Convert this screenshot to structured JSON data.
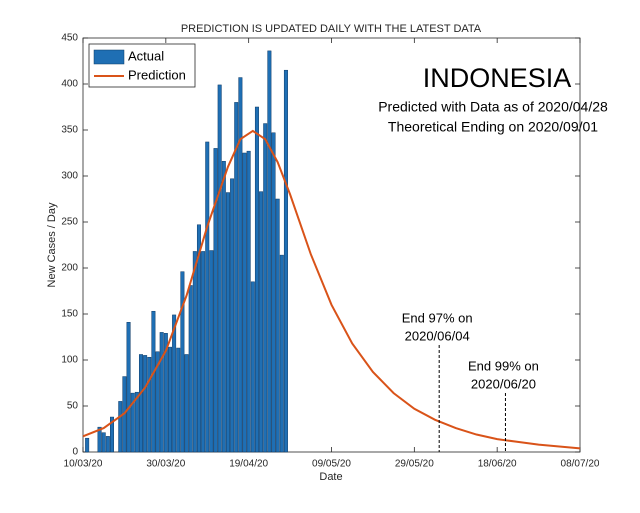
{
  "chart_data": {
    "type": "bar",
    "title": "PREDICTION IS UPDATED DAILY WITH THE LATEST DATA",
    "heading": "INDONESIA",
    "subtitles": [
      "Predicted with Data as of 2020/04/28",
      "Theoretical Ending on 2020/09/01"
    ],
    "x_label": "Date",
    "y_label": "New Cases / Day",
    "xlim": [
      "10/03/20",
      "08/07/20"
    ],
    "xticks": [
      "10/03/20",
      "30/03/20",
      "19/04/20",
      "09/05/20",
      "29/05/20",
      "18/06/20",
      "08/07/20"
    ],
    "ylim": [
      0,
      450
    ],
    "yticks": [
      0,
      50,
      100,
      150,
      200,
      250,
      300,
      350,
      400,
      450
    ],
    "legend": "upper left",
    "series": [
      {
        "name": "Actual",
        "type": "bar",
        "color": "#1f6fb4",
        "x": [
          "11/03/20",
          "12/03/20",
          "13/03/20",
          "14/03/20",
          "15/03/20",
          "16/03/20",
          "17/03/20",
          "18/03/20",
          "19/03/20",
          "20/03/20",
          "21/03/20",
          "22/03/20",
          "23/03/20",
          "24/03/20",
          "25/03/20",
          "26/03/20",
          "27/03/20",
          "28/03/20",
          "29/03/20",
          "30/03/20",
          "31/03/20",
          "01/04/20",
          "02/04/20",
          "03/04/20",
          "04/04/20",
          "05/04/20",
          "06/04/20",
          "07/04/20",
          "08/04/20",
          "09/04/20",
          "10/04/20",
          "11/04/20",
          "12/04/20",
          "13/04/20",
          "14/04/20",
          "15/04/20",
          "16/04/20",
          "17/04/20",
          "18/04/20",
          "19/04/20",
          "20/04/20",
          "21/04/20",
          "22/04/20",
          "23/04/20",
          "24/04/20",
          "25/04/20",
          "26/04/20",
          "27/04/20",
          "28/04/20"
        ],
        "values": [
          15,
          0,
          0,
          27,
          21,
          17,
          38,
          0,
          55,
          82,
          141,
          64,
          65,
          106,
          105,
          103,
          153,
          109,
          130,
          129,
          114,
          149,
          113,
          196,
          106,
          181,
          218,
          247,
          218,
          337,
          219,
          330,
          399,
          316,
          282,
          297,
          380,
          407,
          325,
          327,
          185,
          375,
          283,
          357,
          436,
          347,
          275,
          214,
          415
        ]
      },
      {
        "name": "Prediction",
        "type": "line",
        "color": "#d95319",
        "x": [
          "10/03/20",
          "15/03/20",
          "20/03/20",
          "25/03/20",
          "30/03/20",
          "04/04/20",
          "09/04/20",
          "14/04/20",
          "17/04/20",
          "20/04/20",
          "23/04/20",
          "26/04/20",
          "29/04/20",
          "04/05/20",
          "09/05/20",
          "14/05/20",
          "19/05/20",
          "24/05/20",
          "29/05/20",
          "03/06/20",
          "08/06/20",
          "13/06/20",
          "18/06/20",
          "23/06/20",
          "28/06/20",
          "03/07/20",
          "08/07/20"
        ],
        "values": [
          17,
          26,
          42,
          70,
          110,
          170,
          245,
          310,
          340,
          349,
          340,
          315,
          280,
          215,
          160,
          118,
          87,
          64,
          47,
          35,
          26,
          19,
          14,
          11,
          8,
          6,
          4
        ]
      }
    ],
    "markers": [
      {
        "x": "04/06/20",
        "lines": [
          "End 97% on",
          "2020/06/04"
        ]
      },
      {
        "x": "20/06/20",
        "lines": [
          "End 99% on",
          "2020/06/20"
        ]
      }
    ]
  }
}
